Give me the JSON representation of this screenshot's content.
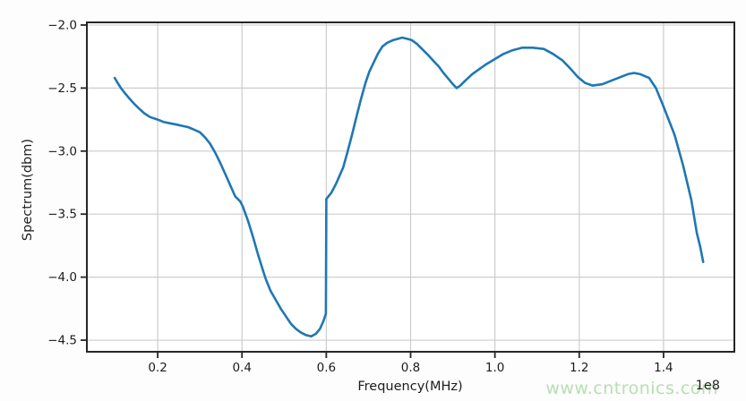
{
  "figure": {
    "background": "#fdfdfd"
  },
  "watermark": {
    "text": "www.cntronics.com",
    "color": "#b6dfb0"
  },
  "chart_data": {
    "type": "line",
    "title": "",
    "xlabel": "Frequency(MHz)",
    "ylabel": "Spectrum(dbm)",
    "x_offset_label": "1e8",
    "xlim": [
      0.032,
      1.568
    ],
    "ylim": [
      -4.592,
      -1.979
    ],
    "xticks": [
      0.2,
      0.4,
      0.6,
      0.8,
      1.0,
      1.2,
      1.4
    ],
    "yticks": [
      -2.0,
      -2.5,
      -3.0,
      -3.5,
      -4.0,
      -4.5
    ],
    "grid": true,
    "legend": "none",
    "colors": {
      "line": "#1f77b4",
      "grid": "#cdcdcd",
      "spine": "#262626",
      "tick_text": "#1c1c1c"
    },
    "series": [
      {
        "name": "spectrum",
        "points": [
          [
            0.098,
            -2.42
          ],
          [
            0.105,
            -2.46
          ],
          [
            0.113,
            -2.5
          ],
          [
            0.122,
            -2.54
          ],
          [
            0.132,
            -2.58
          ],
          [
            0.143,
            -2.62
          ],
          [
            0.155,
            -2.66
          ],
          [
            0.168,
            -2.7
          ],
          [
            0.182,
            -2.73
          ],
          [
            0.2,
            -2.75
          ],
          [
            0.215,
            -2.77
          ],
          [
            0.23,
            -2.78
          ],
          [
            0.245,
            -2.79
          ],
          [
            0.258,
            -2.8
          ],
          [
            0.272,
            -2.81
          ],
          [
            0.286,
            -2.83
          ],
          [
            0.3,
            -2.85
          ],
          [
            0.312,
            -2.89
          ],
          [
            0.324,
            -2.94
          ],
          [
            0.336,
            -3.01
          ],
          [
            0.348,
            -3.09
          ],
          [
            0.36,
            -3.18
          ],
          [
            0.372,
            -3.27
          ],
          [
            0.384,
            -3.36
          ],
          [
            0.396,
            -3.4
          ],
          [
            0.402,
            -3.44
          ],
          [
            0.414,
            -3.55
          ],
          [
            0.426,
            -3.68
          ],
          [
            0.438,
            -3.82
          ],
          [
            0.45,
            -3.95
          ],
          [
            0.457,
            -4.02
          ],
          [
            0.468,
            -4.11
          ],
          [
            0.48,
            -4.18
          ],
          [
            0.492,
            -4.25
          ],
          [
            0.504,
            -4.31
          ],
          [
            0.516,
            -4.37
          ],
          [
            0.528,
            -4.41
          ],
          [
            0.54,
            -4.44
          ],
          [
            0.552,
            -4.46
          ],
          [
            0.564,
            -4.47
          ],
          [
            0.575,
            -4.45
          ],
          [
            0.585,
            -4.41
          ],
          [
            0.593,
            -4.35
          ],
          [
            0.599,
            -4.29
          ],
          [
            0.6,
            -3.38
          ],
          [
            0.612,
            -3.33
          ],
          [
            0.623,
            -3.26
          ],
          [
            0.64,
            -3.13
          ],
          [
            0.65,
            -3.01
          ],
          [
            0.661,
            -2.87
          ],
          [
            0.672,
            -2.72
          ],
          [
            0.682,
            -2.59
          ],
          [
            0.693,
            -2.46
          ],
          [
            0.702,
            -2.37
          ],
          [
            0.712,
            -2.3
          ],
          [
            0.722,
            -2.23
          ],
          [
            0.733,
            -2.17
          ],
          [
            0.745,
            -2.14
          ],
          [
            0.758,
            -2.12
          ],
          [
            0.77,
            -2.11
          ],
          [
            0.78,
            -2.1
          ],
          [
            0.792,
            -2.11
          ],
          [
            0.803,
            -2.12
          ],
          [
            0.815,
            -2.15
          ],
          [
            0.827,
            -2.19
          ],
          [
            0.839,
            -2.23
          ],
          [
            0.853,
            -2.28
          ],
          [
            0.867,
            -2.33
          ],
          [
            0.878,
            -2.38
          ],
          [
            0.888,
            -2.42
          ],
          [
            0.898,
            -2.46
          ],
          [
            0.909,
            -2.5
          ],
          [
            0.918,
            -2.48
          ],
          [
            0.93,
            -2.44
          ],
          [
            0.946,
            -2.39
          ],
          [
            0.963,
            -2.35
          ],
          [
            0.98,
            -2.31
          ],
          [
            1.0,
            -2.27
          ],
          [
            1.02,
            -2.23
          ],
          [
            1.042,
            -2.2
          ],
          [
            1.065,
            -2.18
          ],
          [
            1.09,
            -2.18
          ],
          [
            1.116,
            -2.19
          ],
          [
            1.138,
            -2.23
          ],
          [
            1.16,
            -2.28
          ],
          [
            1.18,
            -2.35
          ],
          [
            1.196,
            -2.41
          ],
          [
            1.214,
            -2.46
          ],
          [
            1.232,
            -2.48
          ],
          [
            1.255,
            -2.47
          ],
          [
            1.277,
            -2.44
          ],
          [
            1.3,
            -2.41
          ],
          [
            1.315,
            -2.39
          ],
          [
            1.33,
            -2.38
          ],
          [
            1.345,
            -2.39
          ],
          [
            1.366,
            -2.42
          ],
          [
            1.382,
            -2.5
          ],
          [
            1.398,
            -2.63
          ],
          [
            1.412,
            -2.75
          ],
          [
            1.426,
            -2.87
          ],
          [
            1.447,
            -3.12
          ],
          [
            1.466,
            -3.39
          ],
          [
            1.479,
            -3.65
          ],
          [
            1.487,
            -3.76
          ],
          [
            1.494,
            -3.88
          ]
        ]
      }
    ]
  }
}
